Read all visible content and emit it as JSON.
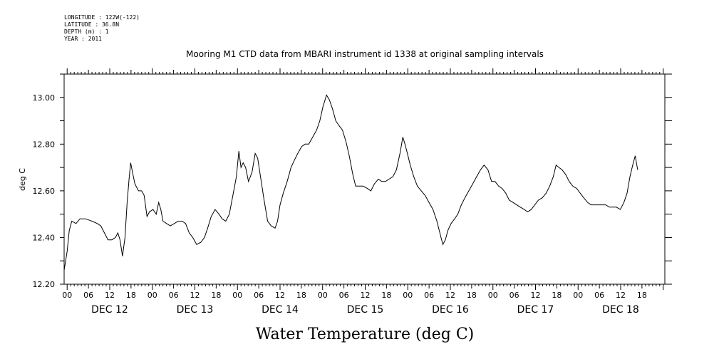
{
  "meta": {
    "longitude": "LONGITUDE : 122W(-122)",
    "latitude": "LATITUDE : 36.8N",
    "depth": "DEPTH (m) : 1",
    "year": "YEAR : 2011"
  },
  "chart_data": {
    "type": "line",
    "title": "Mooring M1 CTD data from MBARI instrument id 1338 at original sampling intervals",
    "bottom_title": "Water Temperature (deg C)",
    "xlabel": "",
    "ylabel": "deg C",
    "ylim": [
      12.2,
      13.1
    ],
    "y_ticks": [
      "12.20",
      "12.40",
      "12.60",
      "12.80",
      "13.00"
    ],
    "x_hour_labels": [
      "00",
      "06",
      "12",
      "18",
      "00",
      "06",
      "12",
      "18",
      "00",
      "06",
      "12",
      "18",
      "00",
      "06",
      "12",
      "18",
      "00",
      "06",
      "12",
      "18",
      "00",
      "06",
      "12",
      "18",
      "00",
      "06",
      "12",
      "18"
    ],
    "x_day_labels": [
      "DEC 12",
      "DEC 13",
      "DEC 14",
      "DEC 15",
      "DEC 16",
      "DEC 17",
      "DEC 18"
    ],
    "x_hours_range": [
      -0.85,
      168.45
    ],
    "grid": false,
    "series": [
      {
        "points": [
          [
            -0.85,
            12.26
          ],
          [
            0.0,
            12.34
          ],
          [
            0.6,
            12.43
          ],
          [
            1.3,
            12.47
          ],
          [
            2.5,
            12.46
          ],
          [
            3.6,
            12.48
          ],
          [
            5.2,
            12.48
          ],
          [
            7.0,
            12.47
          ],
          [
            8.5,
            12.46
          ],
          [
            9.5,
            12.45
          ],
          [
            10.5,
            12.42
          ],
          [
            11.5,
            12.39
          ],
          [
            12.6,
            12.39
          ],
          [
            13.6,
            12.4
          ],
          [
            14.3,
            12.42
          ],
          [
            14.9,
            12.39
          ],
          [
            15.6,
            12.32
          ],
          [
            16.3,
            12.4
          ],
          [
            16.9,
            12.55
          ],
          [
            17.5,
            12.66
          ],
          [
            17.9,
            12.72
          ],
          [
            18.4,
            12.68
          ],
          [
            19.1,
            12.63
          ],
          [
            20.1,
            12.6
          ],
          [
            21.0,
            12.6
          ],
          [
            21.7,
            12.58
          ],
          [
            22.5,
            12.49
          ],
          [
            23.2,
            12.51
          ],
          [
            24.2,
            12.52
          ],
          [
            25.1,
            12.5
          ],
          [
            25.8,
            12.55
          ],
          [
            26.4,
            12.52
          ],
          [
            27.0,
            12.47
          ],
          [
            28.0,
            12.46
          ],
          [
            29.1,
            12.45
          ],
          [
            30.2,
            12.46
          ],
          [
            31.3,
            12.47
          ],
          [
            32.4,
            12.47
          ],
          [
            33.4,
            12.46
          ],
          [
            34.4,
            12.42
          ],
          [
            35.4,
            12.4
          ],
          [
            36.5,
            12.37
          ],
          [
            37.7,
            12.38
          ],
          [
            38.7,
            12.4
          ],
          [
            39.6,
            12.44
          ],
          [
            40.6,
            12.49
          ],
          [
            41.7,
            12.52
          ],
          [
            42.8,
            12.5
          ],
          [
            43.7,
            12.48
          ],
          [
            44.7,
            12.47
          ],
          [
            45.7,
            12.5
          ],
          [
            46.7,
            12.58
          ],
          [
            47.7,
            12.66
          ],
          [
            48.4,
            12.77
          ],
          [
            49.0,
            12.7
          ],
          [
            49.6,
            12.72
          ],
          [
            50.3,
            12.7
          ],
          [
            51.1,
            12.64
          ],
          [
            52.1,
            12.68
          ],
          [
            53.0,
            12.76
          ],
          [
            53.7,
            12.74
          ],
          [
            54.5,
            12.66
          ],
          [
            55.5,
            12.56
          ],
          [
            56.5,
            12.47
          ],
          [
            57.5,
            12.45
          ],
          [
            58.6,
            12.44
          ],
          [
            59.3,
            12.47
          ],
          [
            60.0,
            12.54
          ],
          [
            60.9,
            12.59
          ],
          [
            62.0,
            12.64
          ],
          [
            63.1,
            12.7
          ],
          [
            64.0,
            12.73
          ],
          [
            65.0,
            12.76
          ],
          [
            66.1,
            12.79
          ],
          [
            67.1,
            12.8
          ],
          [
            68.1,
            12.8
          ],
          [
            69.2,
            12.83
          ],
          [
            70.3,
            12.86
          ],
          [
            71.2,
            12.9
          ],
          [
            72.1,
            12.96
          ],
          [
            73.1,
            13.01
          ],
          [
            73.9,
            12.99
          ],
          [
            74.8,
            12.95
          ],
          [
            75.7,
            12.9
          ],
          [
            76.6,
            12.88
          ],
          [
            77.6,
            12.86
          ],
          [
            78.6,
            12.81
          ],
          [
            79.5,
            12.75
          ],
          [
            80.5,
            12.67
          ],
          [
            81.3,
            12.62
          ],
          [
            82.4,
            12.62
          ],
          [
            83.4,
            12.62
          ],
          [
            84.6,
            12.61
          ],
          [
            85.6,
            12.6
          ],
          [
            86.6,
            12.63
          ],
          [
            87.7,
            12.65
          ],
          [
            88.7,
            12.64
          ],
          [
            89.7,
            12.64
          ],
          [
            90.7,
            12.65
          ],
          [
            91.8,
            12.66
          ],
          [
            92.8,
            12.69
          ],
          [
            93.8,
            12.76
          ],
          [
            94.6,
            12.83
          ],
          [
            95.2,
            12.8
          ],
          [
            95.9,
            12.76
          ],
          [
            96.7,
            12.71
          ],
          [
            97.7,
            12.66
          ],
          [
            98.7,
            12.62
          ],
          [
            99.8,
            12.6
          ],
          [
            100.9,
            12.58
          ],
          [
            102.0,
            12.55
          ],
          [
            103.1,
            12.52
          ],
          [
            104.2,
            12.47
          ],
          [
            105.2,
            12.41
          ],
          [
            105.9,
            12.37
          ],
          [
            106.6,
            12.39
          ],
          [
            107.3,
            12.43
          ],
          [
            108.2,
            12.46
          ],
          [
            109.2,
            12.48
          ],
          [
            110.1,
            12.5
          ],
          [
            111.1,
            12.54
          ],
          [
            112.1,
            12.57
          ],
          [
            113.2,
            12.6
          ],
          [
            114.3,
            12.63
          ],
          [
            115.4,
            12.66
          ],
          [
            116.5,
            12.69
          ],
          [
            117.5,
            12.71
          ],
          [
            118.6,
            12.69
          ],
          [
            119.6,
            12.64
          ],
          [
            120.6,
            12.64
          ],
          [
            121.6,
            12.62
          ],
          [
            122.6,
            12.61
          ],
          [
            123.6,
            12.59
          ],
          [
            124.6,
            12.56
          ],
          [
            125.7,
            12.55
          ],
          [
            126.7,
            12.54
          ],
          [
            127.7,
            12.53
          ],
          [
            128.8,
            12.52
          ],
          [
            129.8,
            12.51
          ],
          [
            130.8,
            12.52
          ],
          [
            131.8,
            12.54
          ],
          [
            132.8,
            12.56
          ],
          [
            133.9,
            12.57
          ],
          [
            135.0,
            12.59
          ],
          [
            136.0,
            12.62
          ],
          [
            137.0,
            12.66
          ],
          [
            137.8,
            12.71
          ],
          [
            138.6,
            12.7
          ],
          [
            139.5,
            12.69
          ],
          [
            140.5,
            12.67
          ],
          [
            141.5,
            12.64
          ],
          [
            142.5,
            12.62
          ],
          [
            143.6,
            12.61
          ],
          [
            144.6,
            12.59
          ],
          [
            145.6,
            12.57
          ],
          [
            146.7,
            12.55
          ],
          [
            147.7,
            12.54
          ],
          [
            148.7,
            12.54
          ],
          [
            149.7,
            12.54
          ],
          [
            150.7,
            12.54
          ],
          [
            151.8,
            12.54
          ],
          [
            152.8,
            12.53
          ],
          [
            153.8,
            12.53
          ],
          [
            154.8,
            12.53
          ],
          [
            155.9,
            12.52
          ],
          [
            156.9,
            12.55
          ],
          [
            157.8,
            12.59
          ],
          [
            158.6,
            12.66
          ],
          [
            159.4,
            12.71
          ],
          [
            160.1,
            12.75
          ],
          [
            160.8,
            12.69
          ]
        ]
      }
    ]
  }
}
